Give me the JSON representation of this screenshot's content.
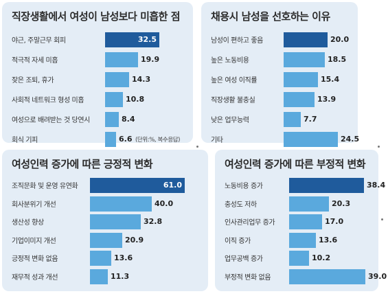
{
  "colors": {
    "bar_highlight": "#1f5b9c",
    "bar_normal": "#5aa9dd",
    "panel_bg": "#e4edf6"
  },
  "chart_data": [
    {
      "type": "bar",
      "orientation": "horizontal",
      "title": "직장생활에서 여성이 남성보다 미흡한 점",
      "note": "(단위:%, 복수응답)",
      "categories": [
        "야근, 주말근무 회피",
        "적극적 자세 미흡",
        "잦은 조퇴, 휴가",
        "사회적 네트워크 형성 미흡",
        "여성으로 배려받는 것 당연시",
        "회식 기피"
      ],
      "values": [
        32.5,
        19.9,
        14.3,
        10.8,
        8.4,
        6.6
      ],
      "value_labels": [
        "32.5",
        "19.9",
        "14.3",
        "10.8",
        "8.4",
        "6.6"
      ],
      "xlim": [
        0,
        32.5
      ]
    },
    {
      "type": "bar",
      "orientation": "horizontal",
      "title": "채용시 남성을 선호하는 이유",
      "categories": [
        "남성이 편하고 좋음",
        "높은 노동비용",
        "높은 여성 이직률",
        "직장생활 불충실",
        "낮은 업무능력",
        "기타"
      ],
      "values": [
        20.0,
        18.5,
        15.4,
        13.9,
        7.7,
        24.5
      ],
      "value_labels": [
        "20.0",
        "18.5",
        "15.4",
        "13.9",
        "7.7",
        "24.5"
      ],
      "xlim": [
        0,
        24.5
      ]
    },
    {
      "type": "bar",
      "orientation": "horizontal",
      "title": "여성인력 증가에 따른 긍정적 변화",
      "categories": [
        "조직문화 및 운영 유연화",
        "회사분위기 개선",
        "생산성 향상",
        "기업이미지 개선",
        "긍정적 변화 없음",
        "재무적 성과 개선"
      ],
      "values": [
        61.0,
        40.0,
        32.8,
        20.9,
        13.6,
        11.3
      ],
      "value_labels": [
        "61.0",
        "40.0",
        "32.8",
        "20.9",
        "13.6",
        "11.3"
      ],
      "xlim": [
        0,
        61.0
      ]
    },
    {
      "type": "bar",
      "orientation": "horizontal",
      "title": "여성인력 증가에 따른 부정적 변화",
      "categories": [
        "노동비용 증가",
        "충성도 저하",
        "인사관리업무 증가",
        "이직 증가",
        "업무공백 증가",
        "부정적 변화 없음"
      ],
      "values": [
        38.4,
        20.3,
        17.0,
        13.6,
        10.2,
        39.0
      ],
      "value_labels": [
        "38.4",
        "20.3",
        "17.0",
        "13.6",
        "10.2",
        "39.0"
      ],
      "xlim": [
        0,
        39.0
      ]
    }
  ]
}
